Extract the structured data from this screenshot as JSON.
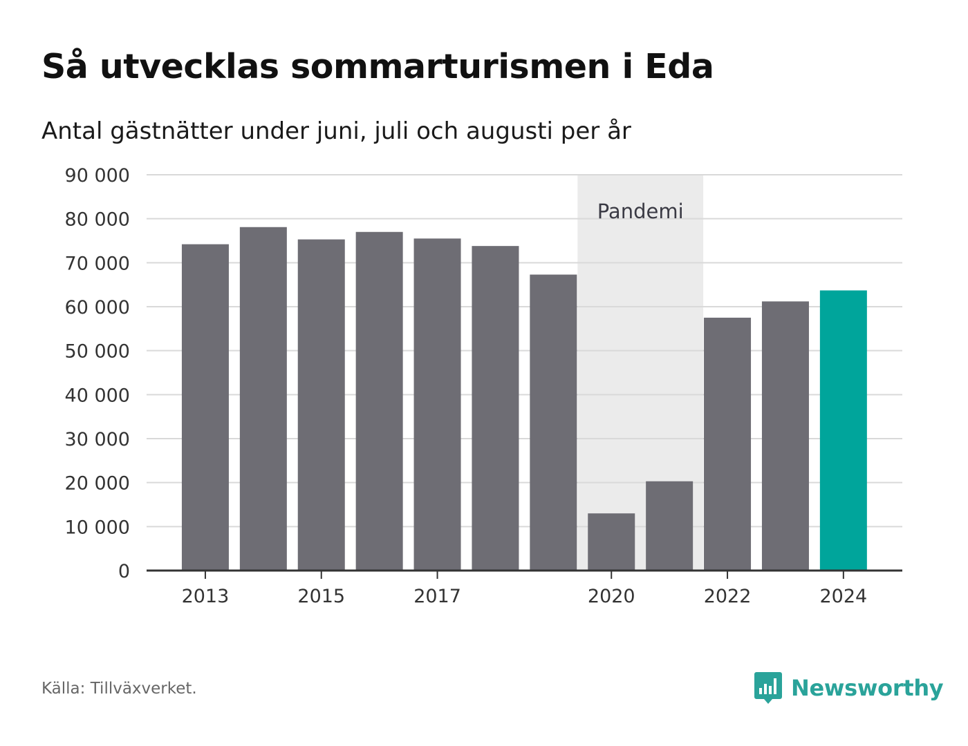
{
  "title": "Så utvecklas sommarturismen i Eda",
  "subtitle": "Antal gästnätter under juni, juli och augusti per år",
  "source": "Källa: Tillväxverket.",
  "brand": {
    "name": "Newsworthy",
    "icon": "newsworthy-logo-icon",
    "color": "#2aa39a"
  },
  "colors": {
    "bar": "#6e6d74",
    "highlight": "#00a59b",
    "shade": "#ebebeb",
    "grid": "#d9d9d9",
    "axis": "#333333",
    "text": "#333333"
  },
  "chart_data": {
    "type": "bar",
    "title": "Så utvecklas sommarturismen i Eda",
    "subtitle": "Antal gästnätter under juni, juli och augusti per år",
    "categories": [
      "2013",
      "2014",
      "2015",
      "2016",
      "2017",
      "2018",
      "2019",
      "2020",
      "2021",
      "2022",
      "2023",
      "2024"
    ],
    "values": [
      74200,
      78100,
      75300,
      77000,
      75500,
      73800,
      67300,
      13000,
      20300,
      57500,
      61200,
      63700
    ],
    "highlight": [
      "2024"
    ],
    "x_tick_labels": [
      "2013",
      "2015",
      "2017",
      "2020",
      "2022",
      "2024"
    ],
    "y_ticks": [
      0,
      10000,
      20000,
      30000,
      40000,
      50000,
      60000,
      70000,
      80000,
      90000
    ],
    "y_tick_labels": [
      "0",
      "10 000",
      "20 000",
      "30 000",
      "40 000",
      "50 000",
      "60 000",
      "70 000",
      "80 000",
      "90 000"
    ],
    "ylim": [
      0,
      90000
    ],
    "grid": true,
    "annotations": [
      {
        "type": "shaded_range",
        "from": "2020",
        "to": "2021",
        "label": "Pandemi"
      }
    ]
  }
}
